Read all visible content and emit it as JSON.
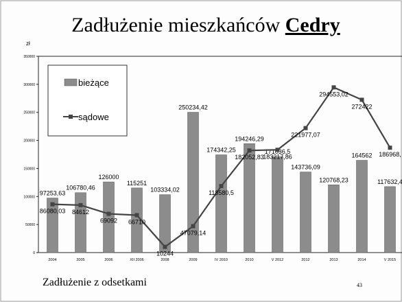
{
  "chart_data": {
    "type": "bar_line",
    "title": "Zadłużenie mieszkańców",
    "title_emphasis": "Cedry",
    "y_axis_label": "zł",
    "footer": "Zadłużenie z odsetkami",
    "page_number": "43",
    "categories": [
      "2004",
      "2005",
      "2006",
      "XII 2006",
      "2008",
      "2009",
      "IV 2010",
      "2010",
      "V 2012",
      "2012",
      "2013",
      "2014",
      "V 2015"
    ],
    "series": [
      {
        "name": "bieżące",
        "kind": "bar",
        "color": "#8c8c8c",
        "values": [
          97253.63,
          106780.46,
          126000,
          115251,
          103334.02,
          250234.42,
          174342.25,
          194246.29,
          171036.5,
          143736.09,
          120768.23,
          164562,
          117632.4
        ],
        "value_labels": [
          "97253,63",
          "106780,46",
          "126000",
          "115251",
          "103334,02",
          "250234,42",
          "174342,25",
          "194246,29",
          "171036,5",
          "143736,09",
          "120768,23",
          "164562",
          "117632,4"
        ]
      },
      {
        "name": "sądowe",
        "kind": "line",
        "color": "#444444",
        "values": [
          86080.03,
          84612,
          69092,
          66710,
          10244,
          47079.14,
          118580.5,
          182052.83,
          183217.86,
          221977.07,
          294553.02,
          272422,
          186968
        ],
        "value_labels": [
          "86080,03",
          "84612",
          "69092",
          "66710",
          "10244",
          "47079,14",
          "118580,5",
          "182052,83",
          "183217,86",
          "221977,07",
          "294553,02",
          "272422",
          "186968,"
        ]
      }
    ],
    "ylim": [
      0,
      350000
    ],
    "yticks": [
      0,
      50000,
      100000,
      150000,
      200000,
      250000,
      300000,
      350000
    ],
    "legend": "top-left"
  }
}
